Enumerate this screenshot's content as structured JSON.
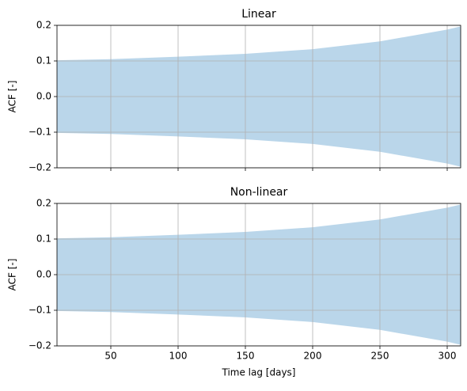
{
  "charts": [
    {
      "type": "band",
      "title": "Linear",
      "ylabel": "ACF [-]",
      "x": [
        10,
        50,
        100,
        150,
        200,
        250,
        300,
        310
      ],
      "upper": [
        0.102,
        0.105,
        0.112,
        0.12,
        0.133,
        0.155,
        0.188,
        0.197
      ],
      "lower": [
        -0.102,
        -0.105,
        -0.112,
        -0.12,
        -0.133,
        -0.155,
        -0.188,
        -0.197
      ],
      "color": "#bad6ea",
      "xlim": [
        10,
        310
      ],
      "ylim": [
        -0.2,
        0.2
      ],
      "xticks": [
        50,
        100,
        150,
        200,
        250,
        300
      ],
      "yticks": [
        {
          "value": -0.2,
          "label": "−0.2"
        },
        {
          "value": -0.1,
          "label": "−0.1"
        },
        {
          "value": 0,
          "label": "0.0"
        },
        0.1,
        0.2
      ],
      "grid": true
    },
    {
      "type": "band",
      "title": "Non-linear",
      "ylabel": "ACF [-]",
      "xlabel": "Time lag [days]",
      "x": [
        10,
        50,
        100,
        150,
        200,
        250,
        300,
        310
      ],
      "upper": [
        0.102,
        0.105,
        0.112,
        0.12,
        0.133,
        0.155,
        0.188,
        0.197
      ],
      "lower": [
        -0.102,
        -0.105,
        -0.112,
        -0.12,
        -0.133,
        -0.155,
        -0.188,
        -0.197
      ],
      "color": "#bad6ea",
      "xlim": [
        10,
        310
      ],
      "ylim": [
        -0.2,
        0.2
      ],
      "xticks": [
        50,
        100,
        150,
        200,
        250,
        300
      ],
      "yticks": [
        {
          "value": -0.2,
          "label": "−0.2"
        },
        {
          "value": -0.1,
          "label": "−0.1"
        },
        {
          "value": 0,
          "label": "0.0"
        },
        0.1,
        0.2
      ],
      "grid": true
    }
  ]
}
